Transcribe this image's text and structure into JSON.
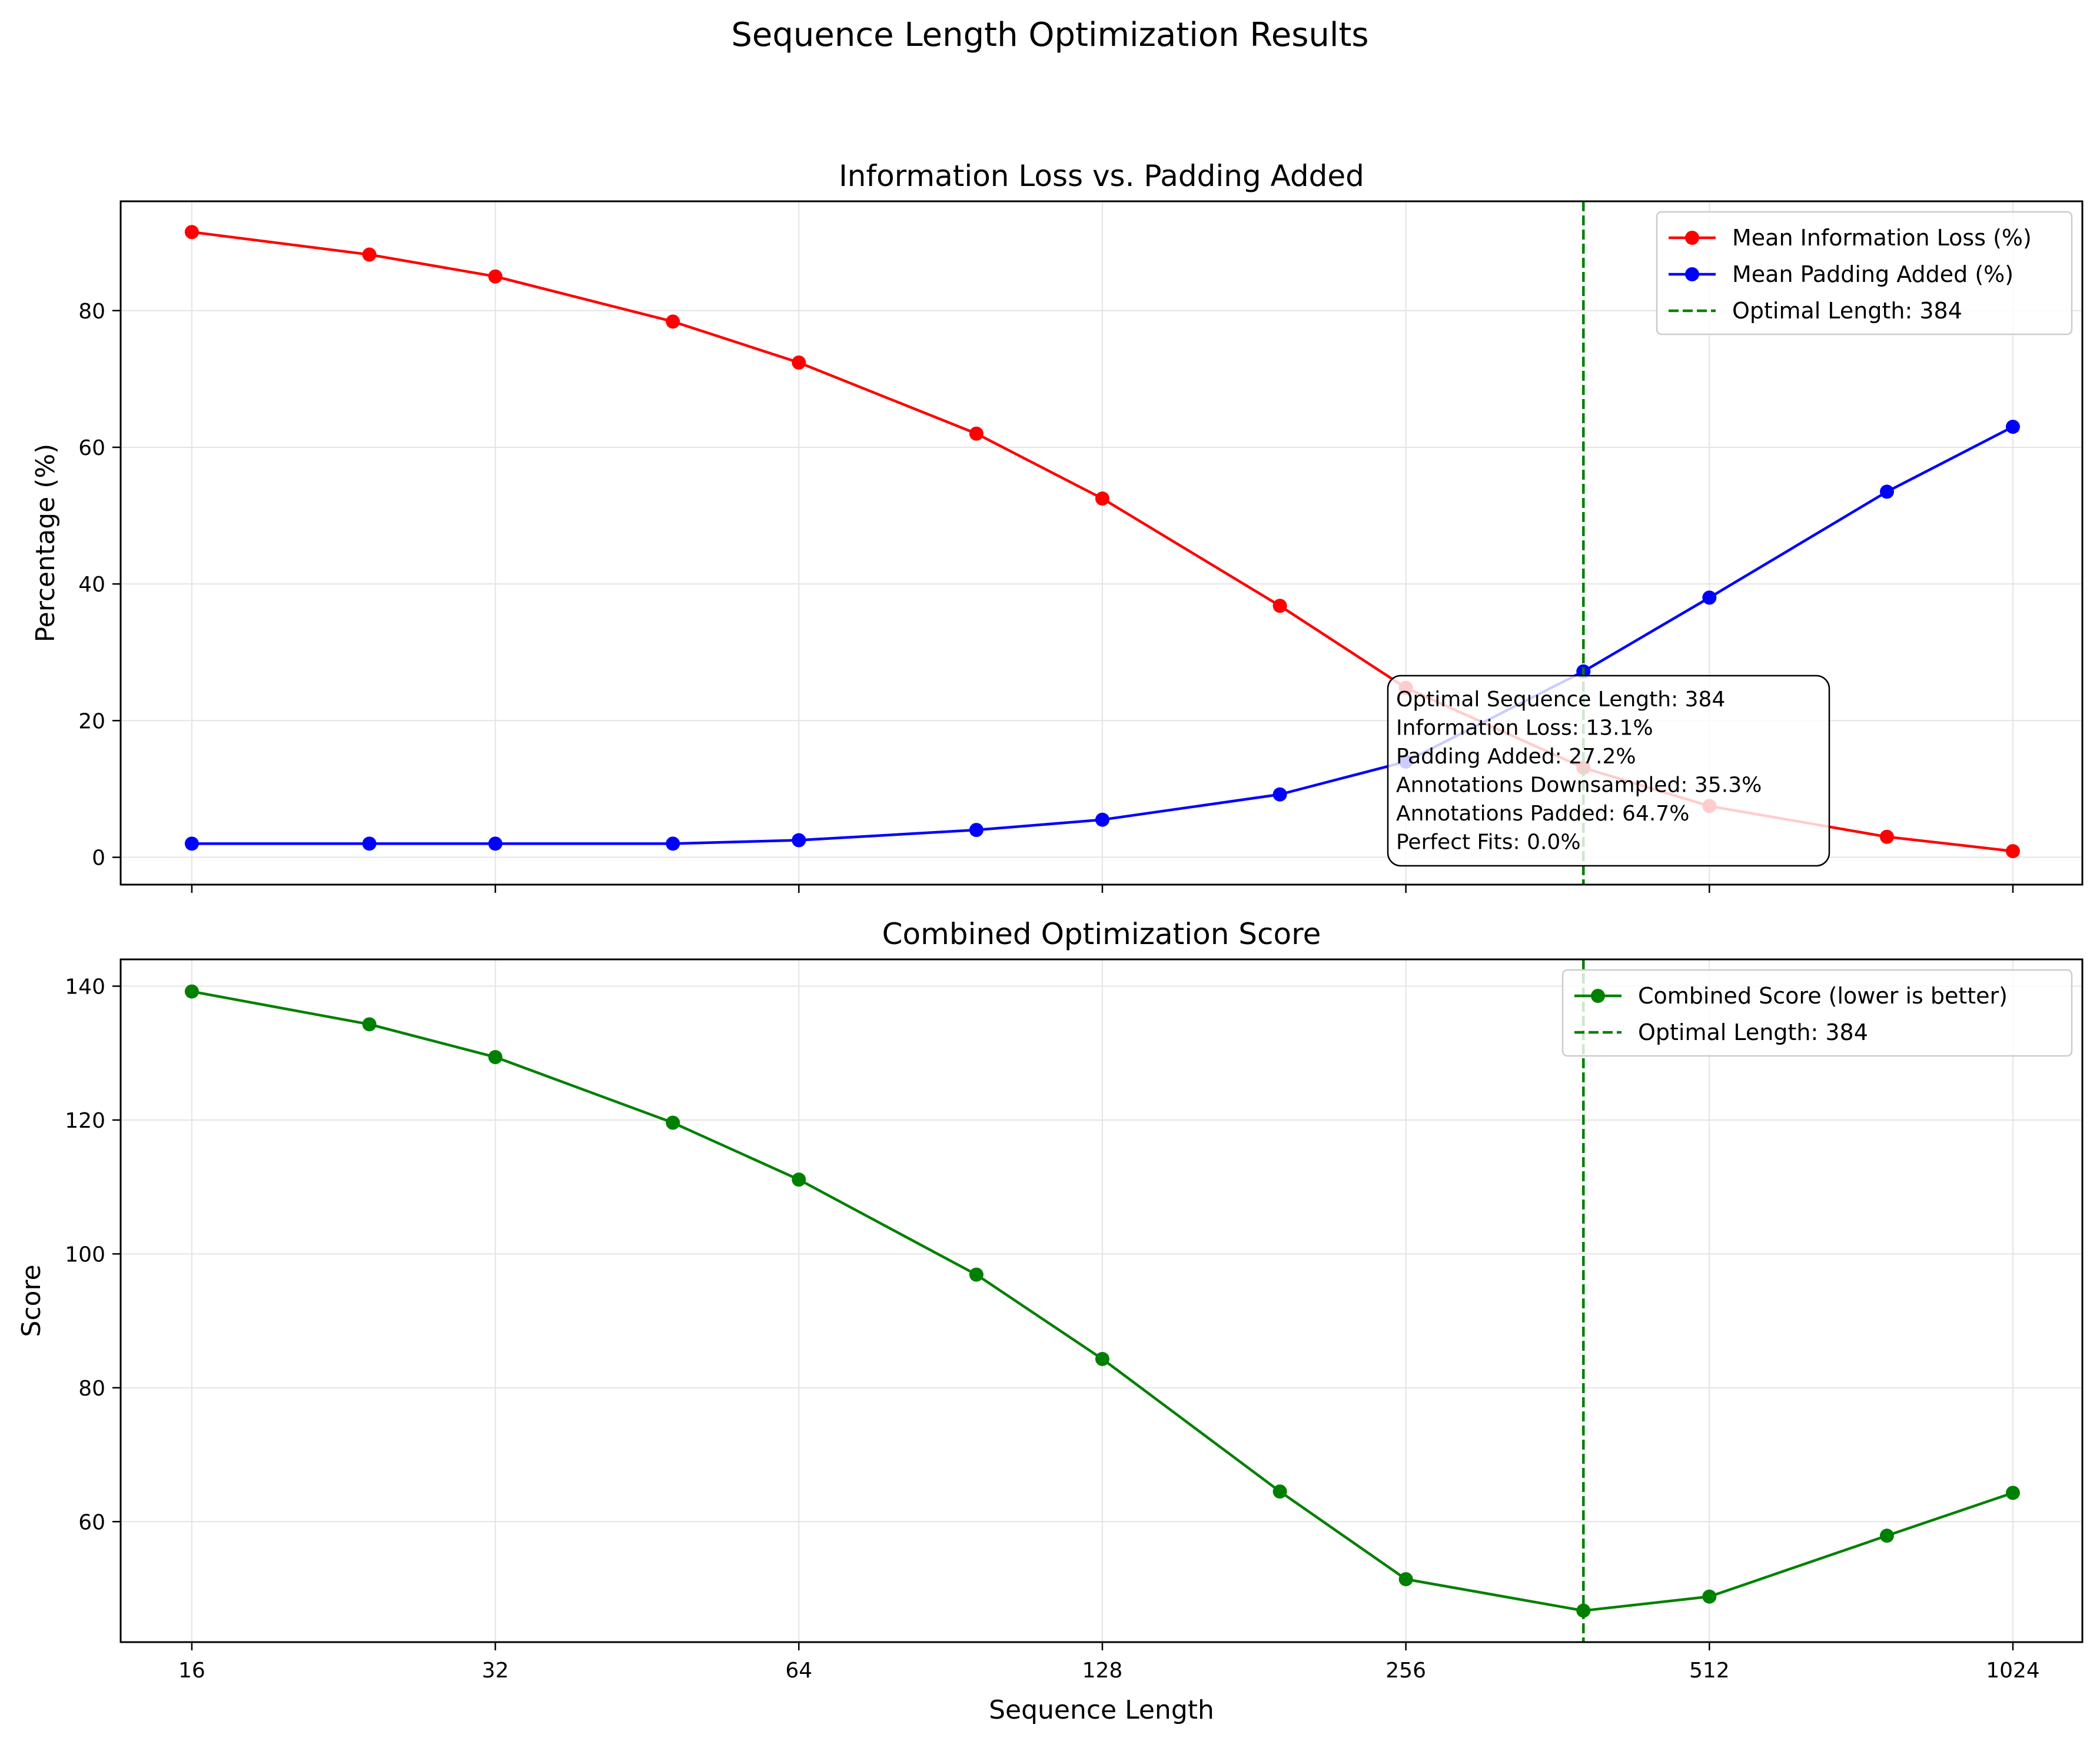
{
  "figure": {
    "suptitle": "Sequence Length Optimization Results"
  },
  "chart_data": [
    {
      "type": "line",
      "title": "Information Loss vs. Padding Added",
      "xlabel": "",
      "ylabel": "Percentage (%)",
      "xscale": "log2",
      "xlim": [
        13.6,
        1200
      ],
      "ylim": [
        -4,
        96
      ],
      "xticks": [
        16,
        32,
        64,
        128,
        256,
        512,
        1024
      ],
      "xtick_labels_visible": false,
      "yticks": [
        0,
        20,
        40,
        60,
        80
      ],
      "grid": true,
      "legend_position": "upper right",
      "x": [
        16,
        24,
        32,
        48,
        64,
        96,
        128,
        192,
        256,
        384,
        512,
        768,
        1024
      ],
      "series": [
        {
          "name": "Mean Information Loss (%)",
          "color": "#ff0000",
          "marker": "circle",
          "values": [
            91.5,
            88.2,
            85.0,
            78.4,
            72.4,
            62.0,
            52.5,
            36.8,
            24.8,
            13.1,
            7.5,
            3.0,
            0.9
          ]
        },
        {
          "name": "Mean Padding Added (%)",
          "color": "#0000ff",
          "marker": "circle",
          "values": [
            2.0,
            2.0,
            2.0,
            2.0,
            2.5,
            4.0,
            5.5,
            9.2,
            14.0,
            27.2,
            38.0,
            53.5,
            63.0
          ]
        }
      ],
      "vline": {
        "x": 384,
        "label": "Optimal Length: 384",
        "color": "#008000",
        "style": "dashed"
      },
      "annotation": {
        "lines": [
          "Optimal Sequence Length: 384",
          "Information Loss: 13.1%",
          "Padding Added: 27.2%",
          "Annotations Downsampled: 35.3%",
          "Annotations Padded: 64.7%",
          "Perfect Fits: 0.0%"
        ]
      }
    },
    {
      "type": "line",
      "title": "Combined Optimization Score",
      "xlabel": "Sequence Length",
      "ylabel": "Score",
      "xscale": "log2",
      "xlim": [
        13.6,
        1200
      ],
      "ylim": [
        42,
        144
      ],
      "xticks": [
        16,
        32,
        64,
        128,
        256,
        512,
        1024
      ],
      "xtick_labels": [
        "16",
        "32",
        "64",
        "128",
        "256",
        "512",
        "1024"
      ],
      "yticks": [
        60,
        80,
        100,
        120,
        140
      ],
      "grid": true,
      "legend_position": "upper right",
      "x": [
        16,
        24,
        32,
        48,
        64,
        96,
        128,
        192,
        256,
        384,
        512,
        768,
        1024
      ],
      "series": [
        {
          "name": "Combined Score (lower is better)",
          "color": "#008000",
          "marker": "circle",
          "values": [
            139.2,
            134.3,
            129.4,
            119.6,
            111.1,
            96.9,
            84.3,
            64.5,
            51.4,
            46.7,
            48.8,
            57.9,
            64.3
          ]
        }
      ],
      "vline": {
        "x": 384,
        "label": "Optimal Length: 384",
        "color": "#008000",
        "style": "dashed"
      }
    }
  ]
}
